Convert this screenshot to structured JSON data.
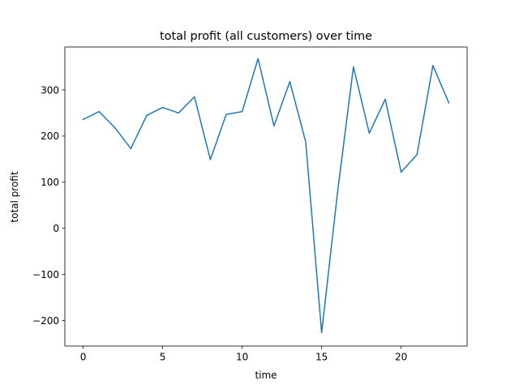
{
  "chart_data": {
    "type": "line",
    "title": "total profit (all customers) over time",
    "xlabel": "time",
    "ylabel": "total profit",
    "xlim": [
      -1.15,
      24.15
    ],
    "ylim": [
      -255,
      393
    ],
    "grid": false,
    "x_ticks": [
      0,
      5,
      10,
      15,
      20
    ],
    "x_tick_labels": [
      "0",
      "5",
      "10",
      "15",
      "20"
    ],
    "y_ticks": [
      -200,
      -100,
      0,
      100,
      200,
      300
    ],
    "y_tick_labels": [
      "−200",
      "−100",
      "0",
      "100",
      "200",
      "300"
    ],
    "series": [
      {
        "color": "#1f77b4",
        "x": [
          0,
          1,
          2,
          3,
          4,
          5,
          6,
          7,
          8,
          9,
          10,
          11,
          12,
          13,
          14,
          15,
          16,
          17,
          18,
          19,
          20,
          21,
          22,
          23
        ],
        "values": [
          236,
          253,
          218,
          173,
          245,
          262,
          250,
          285,
          149,
          247,
          253,
          368,
          222,
          318,
          187,
          -226,
          78,
          350,
          206,
          280,
          122,
          160,
          353,
          272
        ]
      }
    ]
  }
}
